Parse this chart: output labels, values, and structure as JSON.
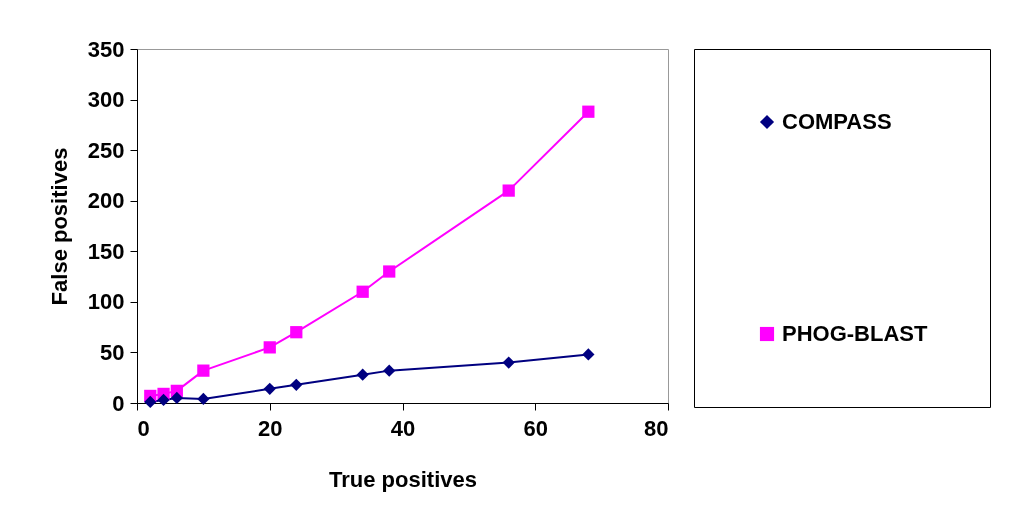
{
  "chart_data": {
    "type": "line",
    "xlabel": "True positives",
    "ylabel": "False positives",
    "x": [
      2,
      4,
      6,
      10,
      20,
      24,
      34,
      38,
      56,
      68
    ],
    "series": [
      {
        "name": "COMPASS",
        "color": "#000080",
        "marker": "diamond",
        "values": [
          1,
          3,
          5,
          4,
          14,
          18,
          28,
          32,
          40,
          48
        ]
      },
      {
        "name": "PHOG-BLAST",
        "color": "#ff00ff",
        "marker": "square",
        "values": [
          7,
          9,
          12,
          32,
          55,
          70,
          110,
          130,
          210,
          288
        ]
      }
    ],
    "xlim": [
      0,
      80
    ],
    "xticks": [
      0,
      20,
      40,
      60,
      80
    ],
    "ylim": [
      0,
      350
    ],
    "yticks": [
      0,
      50,
      100,
      150,
      200,
      250,
      300,
      350
    ],
    "grid": false,
    "legend": "right"
  }
}
